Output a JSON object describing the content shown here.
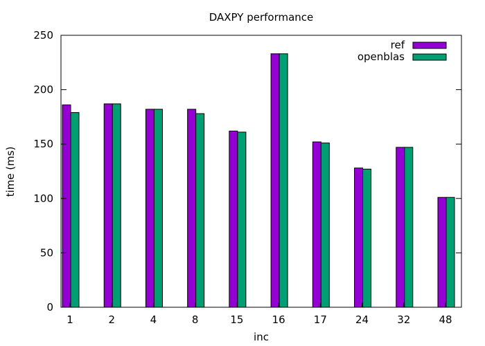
{
  "chart_data": {
    "type": "bar",
    "title": "DAXPY performance",
    "xlabel": "inc",
    "ylabel": "time (ms)",
    "ylim": [
      0,
      250
    ],
    "yticks": [
      0,
      50,
      100,
      150,
      200,
      250
    ],
    "grid": false,
    "legend_position": "top-right",
    "categories": [
      "1",
      "2",
      "4",
      "8",
      "15",
      "16",
      "17",
      "24",
      "32",
      "48"
    ],
    "series": [
      {
        "name": "ref",
        "color": "#9400d3",
        "values": [
          186,
          187,
          182,
          182,
          162,
          233,
          152,
          128,
          147,
          101
        ]
      },
      {
        "name": "openblas",
        "color": "#009e73",
        "values": [
          179,
          187,
          182,
          178,
          161,
          233,
          151,
          127,
          147,
          101
        ]
      }
    ]
  }
}
